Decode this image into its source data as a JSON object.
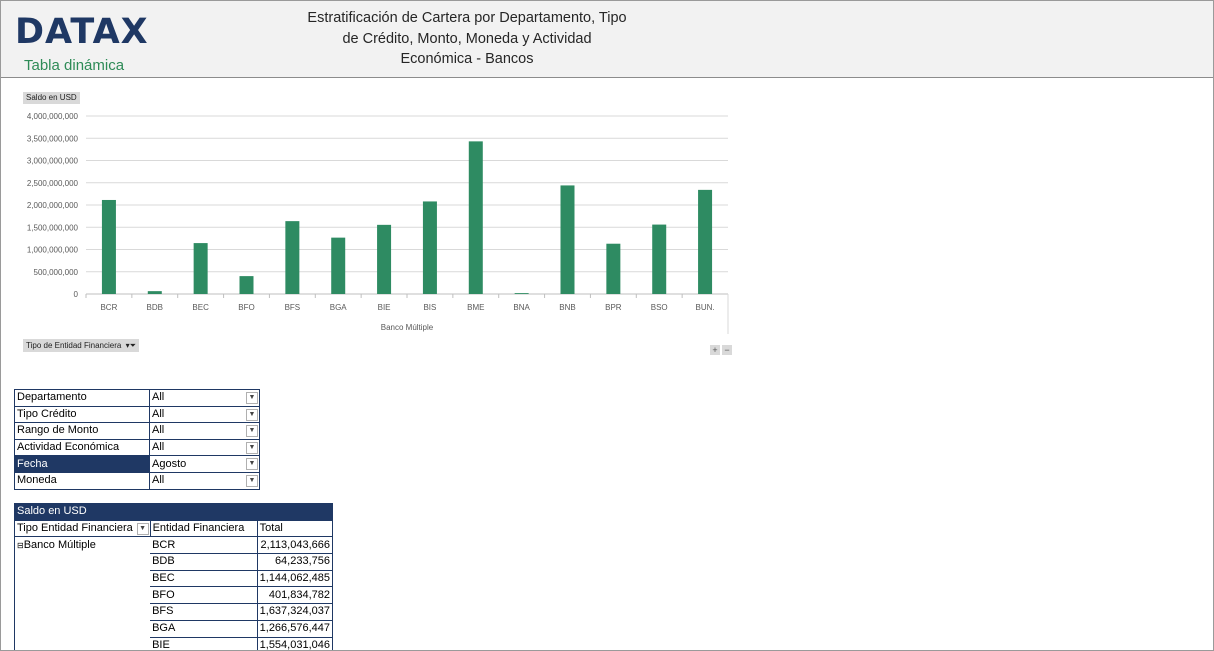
{
  "header": {
    "logo": "DATAX",
    "logo_sub": "Tabla dinámica",
    "title_lines": [
      "Estratificación de Cartera por Departamento, Tipo",
      "de Crédito, Monto, Moneda y Actividad",
      "Económica - Bancos"
    ]
  },
  "chart_buttons": {
    "value_field": "Saldo en USD",
    "filter_field": "Tipo de Entidad Financiera",
    "zoom_in": "+",
    "zoom_out": "−"
  },
  "chart_data": {
    "type": "bar",
    "categories": [
      "BCR",
      "BDB",
      "BEC",
      "BFO",
      "BFS",
      "BGA",
      "BIE",
      "BIS",
      "BME",
      "BNA",
      "BNB",
      "BPR",
      "BSO",
      "BUN."
    ],
    "values": [
      2113043666,
      64233756,
      1144062485,
      401834782,
      1637324037,
      1266576447,
      1554031046,
      2080000000,
      3430000000,
      20000000,
      2440000000,
      1130000000,
      1560000000,
      2340000000
    ],
    "ylim": [
      0,
      4000000000
    ],
    "yticks": [
      "4,000,000,000",
      "3,500,000,000",
      "3,000,000,000",
      "2,500,000,000",
      "2,000,000,000",
      "1,500,000,000",
      "1,000,000,000",
      "500,000,000",
      "0"
    ],
    "xlabel": "Banco Múltiple",
    "ylabel": "",
    "grid": true,
    "color": "#2e8b62"
  },
  "filters": [
    {
      "label": "Departamento",
      "value": "All",
      "icon": "dropdown-arrow"
    },
    {
      "label": "Tipo Crédito",
      "value": "All",
      "icon": "dropdown-arrow"
    },
    {
      "label": "Rango de Monto",
      "value": "All",
      "icon": "dropdown-arrow"
    },
    {
      "label": "Actividad Económica",
      "value": "All",
      "icon": "dropdown-arrow"
    },
    {
      "label": "Fecha",
      "value": "Agosto",
      "icon": "filter-funnel"
    },
    {
      "label": "Moneda",
      "value": "All",
      "icon": "dropdown-arrow"
    }
  ],
  "pivot": {
    "value_header": "Saldo en USD",
    "columns": [
      "Tipo Entidad Financiera",
      "Entidad Financiera",
      "Total"
    ],
    "group": "Banco Múltiple",
    "rows": [
      {
        "entity": "BCR",
        "total": "2,113,043,666"
      },
      {
        "entity": "BDB",
        "total": "64,233,756"
      },
      {
        "entity": "BEC",
        "total": "1,144,062,485"
      },
      {
        "entity": "BFO",
        "total": "401,834,782"
      },
      {
        "entity": "BFS",
        "total": "1,637,324,037"
      },
      {
        "entity": "BGA",
        "total": "1,266,576,447"
      },
      {
        "entity": "BIE",
        "total": "1,554,031,046"
      }
    ]
  }
}
